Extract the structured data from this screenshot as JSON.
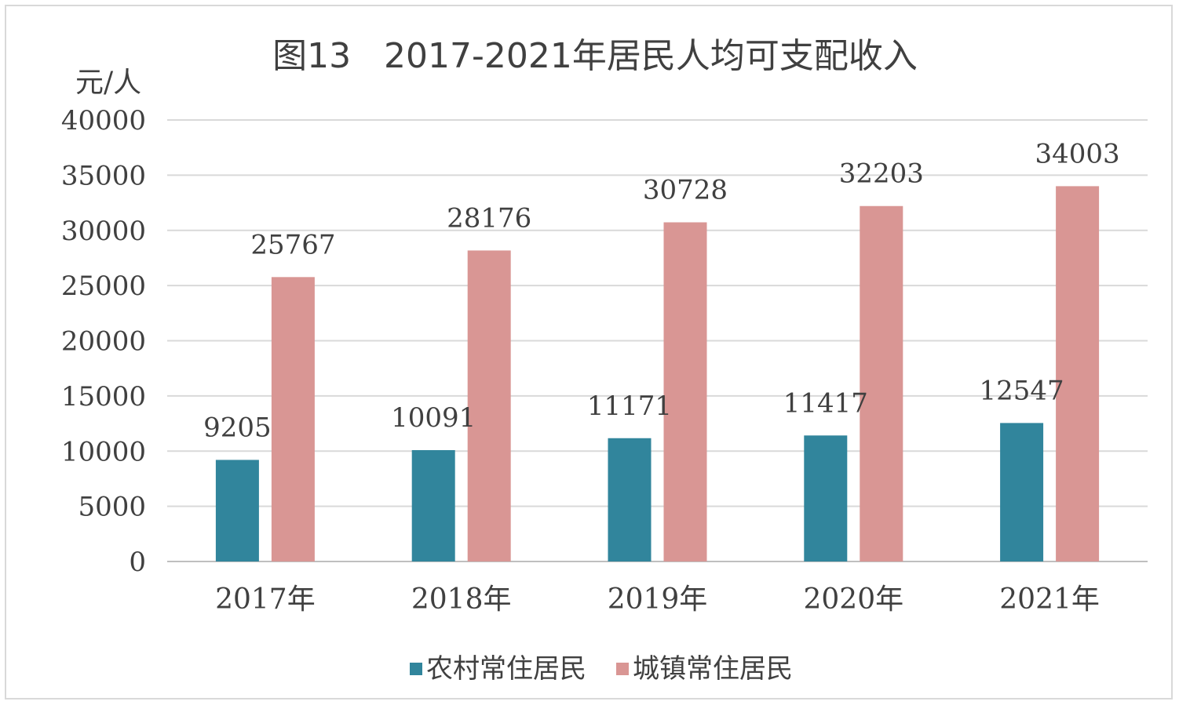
{
  "chart_data": {
    "type": "bar",
    "title": "图13   2017-2021年居民人均可支配收入",
    "ylabel": "元/人",
    "xlabel": "",
    "categories": [
      "2017年",
      "2018年",
      "2019年",
      "2020年",
      "2021年"
    ],
    "series": [
      {
        "name": "农村常住居民",
        "color": "#31859c",
        "values": [
          9205,
          10091,
          11171,
          11417,
          12547
        ]
      },
      {
        "name": "城镇常住居民",
        "color": "#d99694",
        "values": [
          25767,
          28176,
          30728,
          32203,
          34003
        ]
      }
    ],
    "ylim": [
      0,
      40000
    ],
    "yticks": [
      0,
      5000,
      10000,
      15000,
      20000,
      25000,
      30000,
      35000,
      40000
    ],
    "grid": true,
    "legend_position": "bottom",
    "data_labels": true
  }
}
